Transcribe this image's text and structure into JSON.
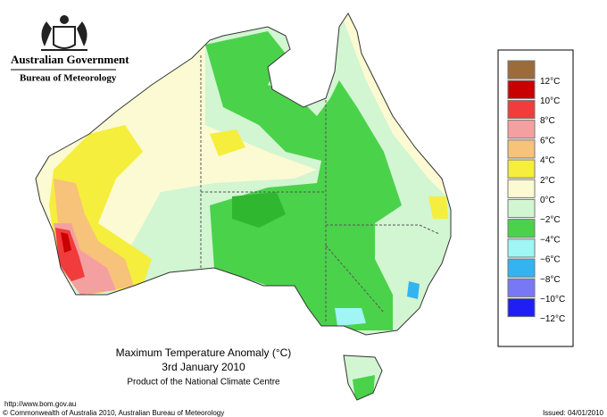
{
  "header": {
    "government": "Australian Government",
    "agency": "Bureau of Meteorology"
  },
  "map": {
    "title": "Maximum Temperature Anomaly (°C)",
    "date": "3rd January 2010",
    "product": "Product of the National Climate Centre"
  },
  "legend": {
    "colors": [
      "#9c6b3c",
      "#c80000",
      "#f03c3c",
      "#f5a0a0",
      "#f7c27a",
      "#f5ee3c",
      "#fbfad2",
      "#d2f5d2",
      "#4bd24b",
      "#a0f5f5",
      "#32b4f0",
      "#7878f5",
      "#1e1ef5"
    ],
    "labels": [
      "12°C",
      "10°C",
      "8°C",
      "6°C",
      "4°C",
      "2°C",
      "0°C",
      "−2°C",
      "−4°C",
      "−6°C",
      "−8°C",
      "−10°C",
      "−12°C"
    ]
  },
  "footer": {
    "url": "http://www.bom.gov.au",
    "copyright": "© Commonwealth of Australia 2010, Australian Bureau of Meteorology",
    "issued": "Issued: 04/01/2010"
  }
}
